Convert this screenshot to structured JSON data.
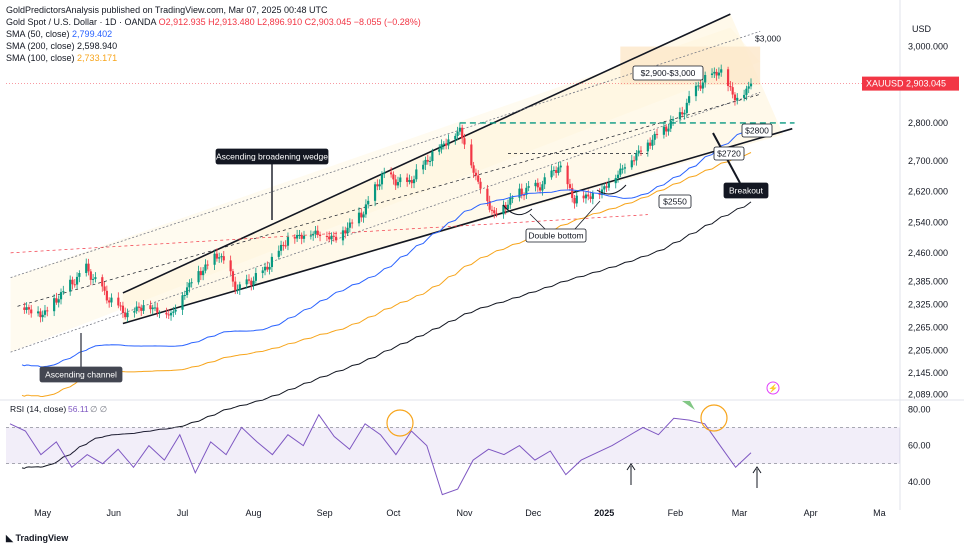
{
  "header": {
    "published": "GoldPredictorsAnalysis published on TradingView.com, Mar 07, 2025 00:48 UTC",
    "symbol": "Gold Spot / U.S. Dollar · 1D · OANDA",
    "ohlc": "O2,912.935 H2,913.480 L2,896.910 C2,903.045 −8.055 (−0.28%)",
    "sma50_label": "SMA (50, close)",
    "sma50_value": "2,799.402",
    "sma200_label": "SMA (200, close)",
    "sma200_value": "2,598.940",
    "sma100_label": "SMA (100, close)",
    "sma100_value": "2,733.171",
    "currency": "USD"
  },
  "price_tag": {
    "symbol": "XAUUSD",
    "value": "2,903.045"
  },
  "annotations": {
    "wedge": "Ascending broadening wedge",
    "channel": "Ascending channel",
    "double_bottom": "Double bottom",
    "breakout": "Breakout",
    "zone": "$2,900-$3,000",
    "level_3000": "$3,000",
    "level_2800": "$2800",
    "level_2720": "$2720",
    "level_2550": "$2550"
  },
  "rsi_header": "RSI (14, close)",
  "rsi_value": "56.11",
  "rsi_extra": "∅ ∅",
  "logo": "TradingView",
  "colors": {
    "up": "#089981",
    "down": "#f23645",
    "sma50": "#2962ff",
    "sma100": "#f7a51c",
    "sma200": "#131722",
    "rsi": "#7e57c2"
  },
  "chart_data": [
    {
      "type": "candlestick",
      "title": "Gold Spot / U.S. Dollar · 1D · OANDA",
      "yaxis": {
        "ticks": [
          3000,
          2800,
          2700,
          2620,
          2540,
          2460,
          2385,
          2325,
          2265,
          2205,
          2145,
          2089
        ],
        "tick_labels": [
          "3,000.000",
          "2,800.000",
          "2,700.000",
          "2,620.000",
          "2,540.000",
          "2,460.000",
          "2,385.000",
          "2,325.000",
          "2,265.000",
          "2,205.000",
          "2,145.000",
          "2,089.000"
        ],
        "range": [
          2080,
          3080
        ]
      },
      "xaxis": {
        "tick_labels": [
          "May",
          "Jun",
          "Jul",
          "Aug",
          "Sep",
          "Oct",
          "Nov",
          "Dec",
          "2025",
          "Feb",
          "Mar",
          "Apr",
          "Ma"
        ]
      },
      "close_series": {
        "dates": [
          "2024-04-22",
          "2024-05-01",
          "2024-05-10",
          "2024-05-20",
          "2024-05-30",
          "2024-06-07",
          "2024-06-14",
          "2024-06-26",
          "2024-07-05",
          "2024-07-17",
          "2024-07-25",
          "2024-08-05",
          "2024-08-16",
          "2024-08-28",
          "2024-09-06",
          "2024-09-18",
          "2024-09-26",
          "2024-10-07",
          "2024-10-18",
          "2024-10-30",
          "2024-11-06",
          "2024-11-14",
          "2024-11-25",
          "2024-12-05",
          "2024-12-12",
          "2024-12-19",
          "2024-12-30",
          "2025-01-10",
          "2025-01-22",
          "2025-02-03",
          "2025-02-11",
          "2025-02-20",
          "2025-02-28",
          "2025-03-06"
        ],
        "values": [
          2320,
          2300,
          2360,
          2420,
          2340,
          2300,
          2325,
          2300,
          2390,
          2460,
          2365,
          2410,
          2500,
          2515,
          2500,
          2570,
          2665,
          2640,
          2720,
          2785,
          2660,
          2560,
          2620,
          2640,
          2690,
          2600,
          2620,
          2690,
          2760,
          2820,
          2900,
          2940,
          2860,
          2903
        ]
      },
      "sma_current": {
        "sma50": 2799.402,
        "sma200": 2598.94,
        "sma100": 2733.171
      },
      "levels": [
        3000,
        2800,
        2720,
        2550
      ],
      "last_price": 2903.045
    },
    {
      "type": "line",
      "title": "RSI (14, close)",
      "yaxis": {
        "ticks": [
          80,
          60,
          40
        ],
        "tick_labels": [
          "80.00",
          "60.00",
          "40.00"
        ],
        "range": [
          30,
          84
        ]
      },
      "bands": {
        "upper": 70,
        "lower": 50
      },
      "values": [
        72,
        68,
        55,
        62,
        48,
        55,
        50,
        58,
        48,
        60,
        52,
        66,
        45,
        62,
        55,
        70,
        62,
        55,
        66,
        60,
        77,
        65,
        58,
        72,
        66,
        55,
        68,
        60,
        33,
        36,
        52,
        58,
        55,
        60,
        52,
        57,
        44,
        52,
        56,
        60,
        65,
        70,
        66,
        75,
        74,
        72,
        60,
        48,
        56
      ]
    }
  ]
}
